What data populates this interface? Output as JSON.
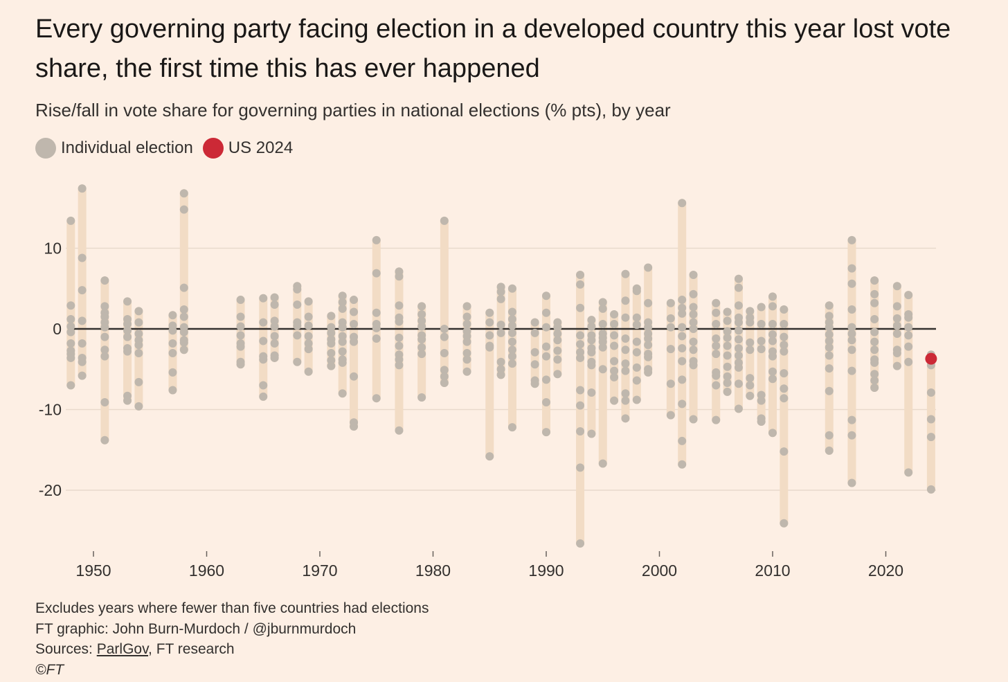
{
  "title": "Every governing party facing election in a developed country this year lost vote share, the first time this has ever happened",
  "subtitle": "Rise/fall in vote share for governing parties in national elections (% pts), by year",
  "legend": [
    {
      "label": "Individual election",
      "color": "#bfb7ad"
    },
    {
      "label": "US 2024",
      "color": "#cc2936"
    }
  ],
  "footer": {
    "note": "Excludes years where fewer than five countries had elections",
    "credit": "FT graphic: John Burn-Murdoch / @jburnmurdoch",
    "sources_prefix": "Sources: ",
    "sources_link": "ParlGov",
    "sources_suffix": ", FT research",
    "copyright": "©FT"
  },
  "colors": {
    "background": "#fdefe4",
    "range_bar": "#f2dcc5",
    "dot": "#bfb7ad",
    "highlight": "#cc2936",
    "zero_line": "#33302e",
    "grid": "#e8d9cc"
  },
  "chart_data": {
    "type": "scatter",
    "title": "",
    "xlabel": "",
    "ylabel": "",
    "xlim": [
      1947.5,
      2025
    ],
    "ylim": [
      -27,
      18
    ],
    "x_ticks": [
      1950,
      1960,
      1970,
      1980,
      1990,
      2000,
      2010,
      2020
    ],
    "y_ticks": [
      10,
      0,
      -10,
      -20
    ],
    "y_tick_labels": [
      "10",
      "0",
      "-10",
      "-20"
    ],
    "grid": "horizontal",
    "zero_line": true,
    "highlight": {
      "label": "US 2024",
      "x": 2024,
      "y": -3.7
    },
    "years": [
      {
        "year": 1948,
        "values": [
          13.4,
          2.9,
          1.2,
          0.3,
          -0.4,
          -1.8,
          -2.7,
          -3.1,
          -3.6,
          -7.0
        ]
      },
      {
        "year": 1949,
        "values": [
          17.4,
          8.8,
          4.8,
          1.0,
          -1.8,
          -3.6,
          -4.1,
          -5.8
        ]
      },
      {
        "year": 1951,
        "values": [
          6.0,
          2.8,
          2.0,
          1.5,
          0.8,
          0.2,
          -1.0,
          -2.6,
          -3.4,
          -9.1,
          -13.8
        ]
      },
      {
        "year": 1953,
        "values": [
          3.4,
          1.2,
          0.6,
          -0.2,
          -1.0,
          -2.4,
          -2.8,
          -8.3,
          -8.9
        ]
      },
      {
        "year": 1954,
        "values": [
          2.2,
          0.8,
          -0.6,
          -1.4,
          -2.0,
          -3.0,
          -6.6,
          -9.6
        ]
      },
      {
        "year": 1957,
        "values": [
          1.7,
          0.4,
          -0.2,
          -1.8,
          -3.0,
          -5.4,
          -7.6
        ]
      },
      {
        "year": 1958,
        "values": [
          16.8,
          14.8,
          5.1,
          2.4,
          1.5,
          0.2,
          -0.4,
          -1.4,
          -1.7,
          -2.6
        ]
      },
      {
        "year": 1963,
        "values": [
          3.6,
          1.5,
          0.3,
          -0.8,
          -1.8,
          -2.2,
          -4.1,
          -4.4
        ]
      },
      {
        "year": 1965,
        "values": [
          3.8,
          0.8,
          -1.5,
          -3.4,
          -3.8,
          -7.0,
          -8.4
        ]
      },
      {
        "year": 1966,
        "values": [
          3.9,
          3.0,
          1.0,
          0.3,
          -0.9,
          -1.8,
          -3.3,
          -3.6
        ]
      },
      {
        "year": 1968,
        "values": [
          5.3,
          4.9,
          3.0,
          0.8,
          0.4,
          -0.8,
          -4.1
        ]
      },
      {
        "year": 1969,
        "values": [
          3.4,
          1.5,
          0.4,
          -0.9,
          -1.8,
          -2.5,
          -5.3
        ]
      },
      {
        "year": 1971,
        "values": [
          1.6,
          0.2,
          -0.5,
          -1.3,
          -1.8,
          -3.0,
          -3.9,
          -4.6
        ]
      },
      {
        "year": 1972,
        "values": [
          4.1,
          3.3,
          2.5,
          0.8,
          0.2,
          -0.9,
          -1.6,
          -2.8,
          -3.8,
          -4.2,
          -8.0
        ]
      },
      {
        "year": 1973,
        "values": [
          3.6,
          2.1,
          0.6,
          -1.0,
          -1.6,
          -5.9,
          -11.6,
          -12.1
        ]
      },
      {
        "year": 1975,
        "values": [
          11.0,
          6.9,
          2.0,
          0.6,
          0.1,
          -1.2,
          -8.6
        ]
      },
      {
        "year": 1977,
        "values": [
          7.1,
          6.5,
          2.9,
          1.4,
          0.9,
          -1.1,
          -2.1,
          -3.2,
          -3.8,
          -4.5,
          -12.6
        ]
      },
      {
        "year": 1979,
        "values": [
          2.8,
          1.8,
          1.0,
          0.3,
          -0.8,
          -1.3,
          -2.3,
          -3.1,
          -8.5
        ]
      },
      {
        "year": 1981,
        "values": [
          13.4,
          0.0,
          -1.0,
          -3.0,
          -5.1,
          -5.9,
          -6.7
        ]
      },
      {
        "year": 1983,
        "values": [
          2.8,
          1.5,
          0.6,
          -0.3,
          -0.9,
          -1.6,
          -3.0,
          -3.8,
          -5.3
        ]
      },
      {
        "year": 1985,
        "values": [
          2.0,
          0.8,
          -0.8,
          -2.1,
          -2.3,
          -15.8
        ]
      },
      {
        "year": 1986,
        "values": [
          5.2,
          4.6,
          3.7,
          0.5,
          -0.5,
          -4.1,
          -5.0,
          -5.7
        ]
      },
      {
        "year": 1987,
        "values": [
          5.0,
          2.1,
          1.2,
          0.4,
          -0.5,
          -1.6,
          -2.6,
          -3.4,
          -4.3,
          -12.2
        ]
      },
      {
        "year": 1989,
        "values": [
          0.8,
          -0.5,
          -2.9,
          -4.4,
          -6.4,
          -6.8
        ]
      },
      {
        "year": 1990,
        "values": [
          4.1,
          2.0,
          0.2,
          -2.2,
          -3.4,
          -6.3,
          -9.1,
          -12.8
        ]
      },
      {
        "year": 1991,
        "values": [
          0.8,
          0.2,
          -0.6,
          -1.4,
          -2.7,
          -3.8,
          -5.6
        ]
      },
      {
        "year": 1993,
        "values": [
          6.7,
          5.5,
          2.6,
          -0.8,
          -1.9,
          -2.9,
          -3.6,
          -7.6,
          -9.5,
          -12.7,
          -17.2,
          -26.6
        ]
      },
      {
        "year": 1994,
        "values": [
          1.1,
          0.3,
          -0.8,
          -1.4,
          -2.4,
          -2.9,
          -4.1,
          -4.5,
          -7.9,
          -13.0
        ]
      },
      {
        "year": 1995,
        "values": [
          3.3,
          2.5,
          0.6,
          -0.6,
          -1.1,
          -1.6,
          -2.3,
          -5.0,
          -16.7
        ]
      },
      {
        "year": 1996,
        "values": [
          1.8,
          0.6,
          -0.8,
          -2.1,
          -4.0,
          -5.2,
          -6.0,
          -8.9
        ]
      },
      {
        "year": 1997,
        "values": [
          6.8,
          3.5,
          1.4,
          -1.2,
          -2.6,
          -4.3,
          -5.2,
          -8.0,
          -8.9,
          -11.1
        ]
      },
      {
        "year": 1998,
        "values": [
          5.0,
          4.7,
          1.4,
          0.5,
          -1.6,
          -2.9,
          -4.8,
          -6.4,
          -8.8
        ]
      },
      {
        "year": 1999,
        "values": [
          7.6,
          3.2,
          0.8,
          0.2,
          -0.6,
          -1.2,
          -2.0,
          -3.1,
          -3.5,
          -5.0,
          -5.4
        ]
      },
      {
        "year": 2001,
        "values": [
          3.2,
          1.3,
          0.2,
          -2.5,
          -6.8,
          -10.7
        ]
      },
      {
        "year": 2002,
        "values": [
          15.6,
          3.6,
          2.6,
          1.9,
          0.2,
          -0.9,
          -2.4,
          -4.0,
          -6.3,
          -9.3,
          -13.9,
          -16.8
        ]
      },
      {
        "year": 2003,
        "values": [
          6.7,
          4.3,
          2.7,
          1.8,
          0.8,
          0.0,
          -1.6,
          -2.6,
          -4.0,
          -4.5,
          -11.2
        ]
      },
      {
        "year": 2005,
        "values": [
          3.2,
          2.0,
          0.6,
          -1.2,
          -2.1,
          -3.1,
          -5.4,
          -5.8,
          -7.0,
          -11.3
        ]
      },
      {
        "year": 2006,
        "values": [
          2.1,
          1.0,
          -0.3,
          -1.1,
          -2.1,
          -3.3,
          -4.7,
          -5.9,
          -6.7,
          -7.8
        ]
      },
      {
        "year": 2007,
        "values": [
          6.2,
          5.1,
          2.9,
          1.4,
          0.8,
          -0.2,
          -1.3,
          -2.4,
          -3.3,
          -4.2,
          -4.8,
          -6.8,
          -9.9
        ]
      },
      {
        "year": 2008,
        "values": [
          2.2,
          1.4,
          0.8,
          -1.7,
          -2.6,
          -6.1,
          -7.0,
          -8.3
        ]
      },
      {
        "year": 2009,
        "values": [
          2.7,
          0.6,
          -1.5,
          -2.5,
          -8.2,
          -8.9,
          -11.1,
          -11.5
        ]
      },
      {
        "year": 2010,
        "values": [
          4.0,
          2.8,
          0.6,
          -0.7,
          -1.5,
          -2.8,
          -3.4,
          -5.3,
          -6.2,
          -12.9
        ]
      },
      {
        "year": 2011,
        "values": [
          2.4,
          0.6,
          -1.0,
          -2.0,
          -2.8,
          -5.5,
          -7.4,
          -8.6,
          -15.2,
          -24.1
        ]
      },
      {
        "year": 2015,
        "values": [
          2.9,
          1.6,
          0.8,
          0.2,
          -0.7,
          -1.5,
          -2.3,
          -3.3,
          -4.9,
          -7.7,
          -13.2,
          -15.1
        ]
      },
      {
        "year": 2017,
        "values": [
          11.0,
          7.5,
          5.6,
          2.4,
          0.2,
          -0.6,
          -1.4,
          -2.6,
          -5.2,
          -11.3,
          -13.2,
          -19.1
        ]
      },
      {
        "year": 2019,
        "values": [
          6.0,
          4.3,
          3.2,
          1.2,
          -0.4,
          -1.6,
          -2.6,
          -3.8,
          -4.2,
          -5.6,
          -6.4,
          -7.3
        ]
      },
      {
        "year": 2021,
        "values": [
          5.3,
          2.8,
          1.3,
          0.4,
          -0.6,
          -2.6,
          -3.0,
          -4.6
        ]
      },
      {
        "year": 2022,
        "values": [
          4.2,
          1.8,
          1.4,
          0.2,
          -0.8,
          -2.2,
          -4.1,
          -17.8
        ]
      },
      {
        "year": 2024,
        "values": [
          -3.2,
          -4.5,
          -7.9,
          -11.2,
          -13.4,
          -19.9
        ]
      }
    ]
  }
}
